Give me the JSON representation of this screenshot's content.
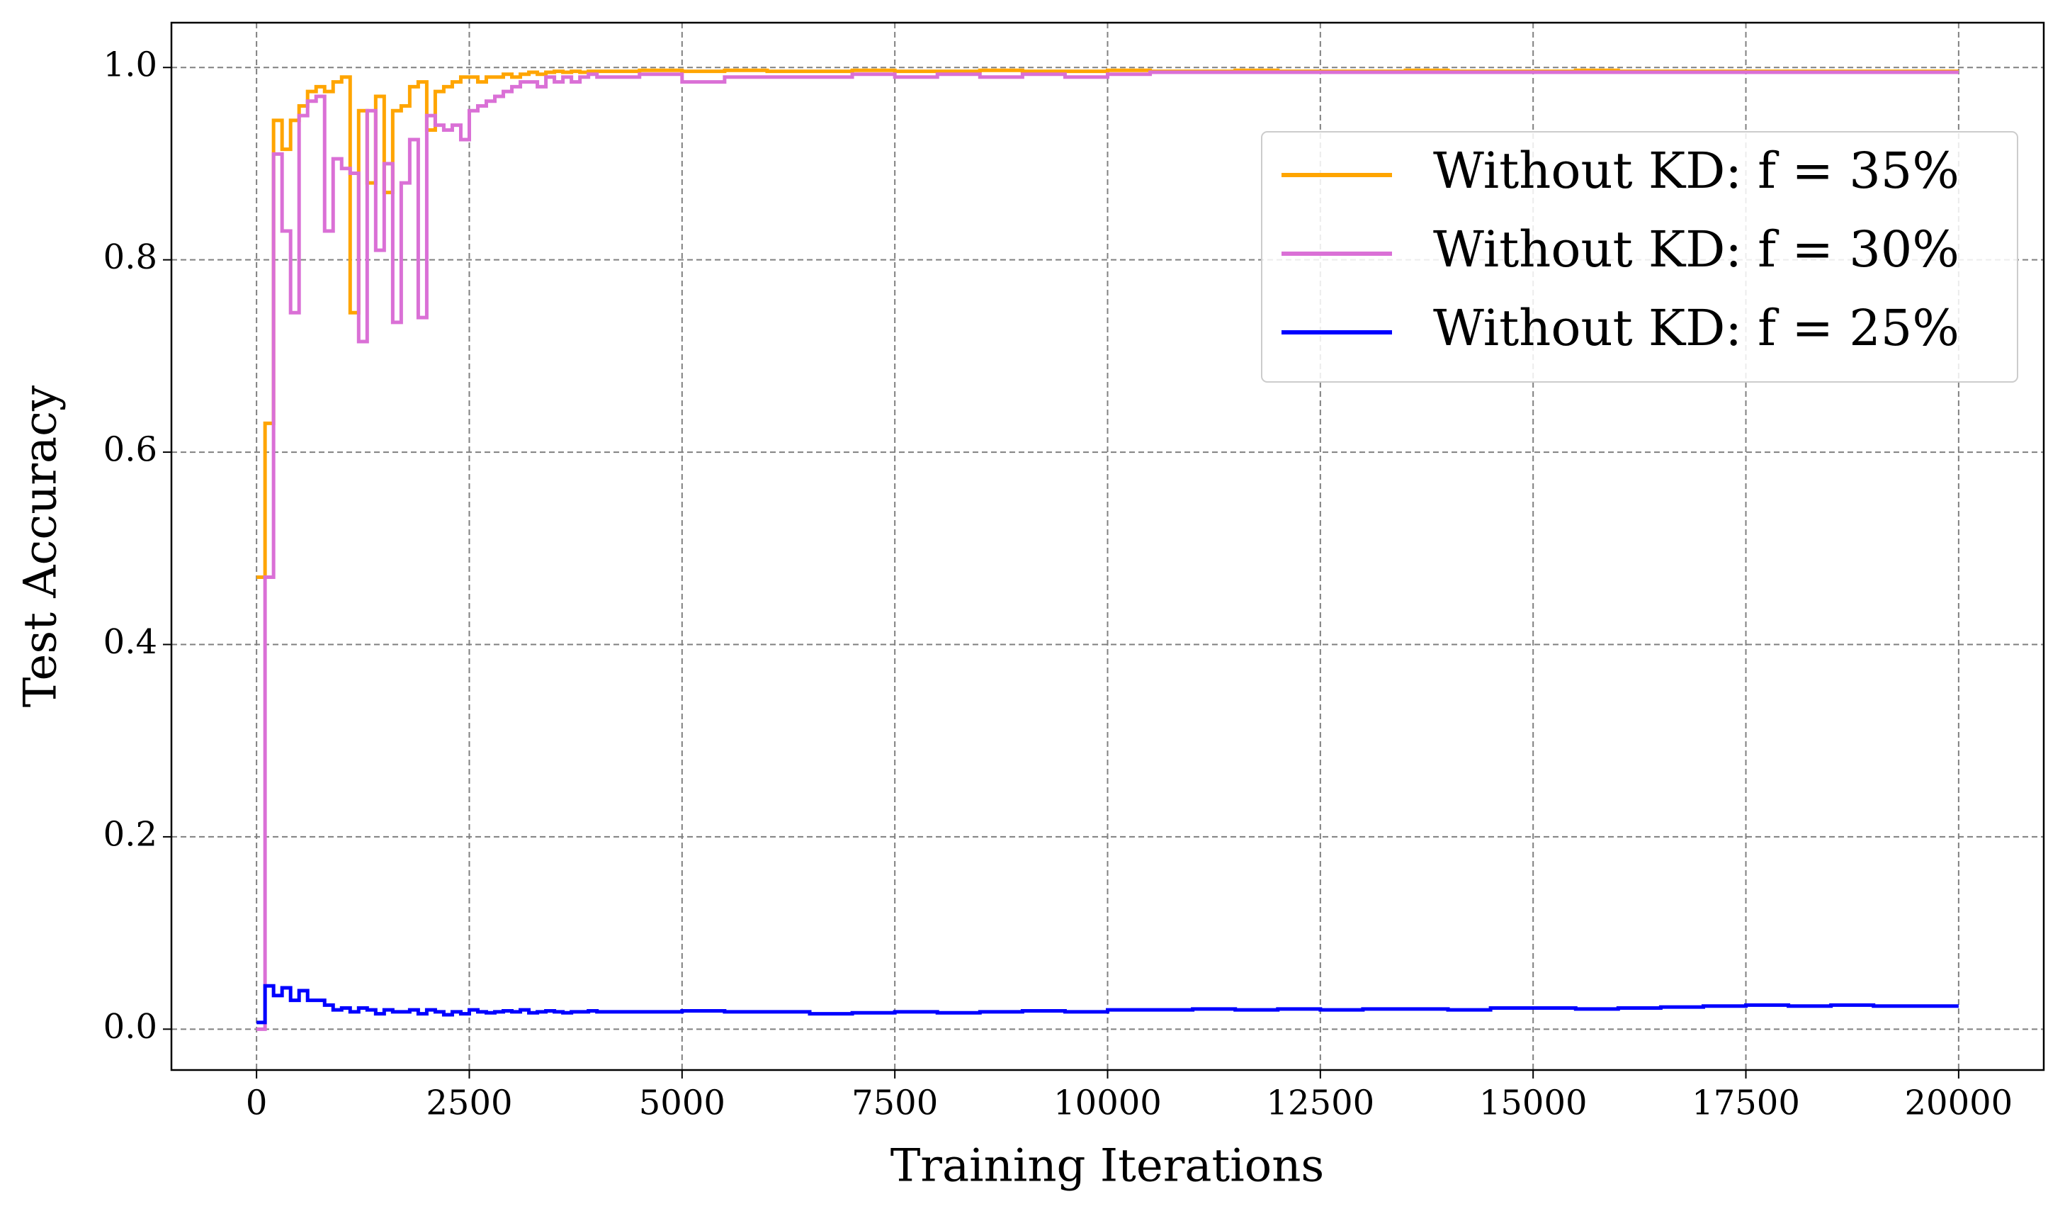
{
  "chart_data": {
    "type": "step-line",
    "xlabel": "Training Iterations",
    "ylabel": "Test Accuracy",
    "x": [
      0,
      100,
      200,
      300,
      400,
      500,
      600,
      700,
      800,
      900,
      1000,
      1100,
      1200,
      1300,
      1400,
      1500,
      1600,
      1700,
      1800,
      1900,
      2000,
      2100,
      2200,
      2300,
      2400,
      2500,
      2600,
      2700,
      2800,
      2900,
      3000,
      3100,
      3200,
      3300,
      3400,
      3500,
      3600,
      3700,
      3800,
      3900,
      4000,
      4500,
      5000,
      5500,
      6000,
      6500,
      7000,
      7500,
      8000,
      8500,
      9000,
      9500,
      10000,
      10500,
      11000,
      11500,
      12000,
      12500,
      13000,
      13500,
      14000,
      14500,
      15000,
      15500,
      16000,
      16500,
      17000,
      17500,
      18000,
      18500,
      19000,
      19500,
      20000
    ],
    "series": [
      {
        "name": "Without KD: f = 35%",
        "color": "#ffa500",
        "values": [
          0.47,
          0.63,
          0.945,
          0.915,
          0.945,
          0.96,
          0.975,
          0.98,
          0.975,
          0.985,
          0.99,
          0.745,
          0.955,
          0.88,
          0.97,
          0.87,
          0.955,
          0.96,
          0.98,
          0.985,
          0.935,
          0.975,
          0.98,
          0.985,
          0.99,
          0.99,
          0.985,
          0.99,
          0.99,
          0.993,
          0.99,
          0.993,
          0.995,
          0.993,
          0.995,
          0.996,
          0.995,
          0.996,
          0.995,
          0.996,
          0.996,
          0.997,
          0.996,
          0.997,
          0.996,
          0.996,
          0.997,
          0.996,
          0.996,
          0.997,
          0.996,
          0.996,
          0.997,
          0.996,
          0.996,
          0.997,
          0.996,
          0.996,
          0.996,
          0.997,
          0.996,
          0.996,
          0.996,
          0.997,
          0.996,
          0.996,
          0.996,
          0.996,
          0.996,
          0.996,
          0.996,
          0.996,
          0.996
        ]
      },
      {
        "name": "Without KD: f = 30%",
        "color": "#da70d6",
        "values": [
          0.0,
          0.47,
          0.91,
          0.83,
          0.745,
          0.95,
          0.965,
          0.97,
          0.83,
          0.905,
          0.895,
          0.89,
          0.715,
          0.955,
          0.81,
          0.9,
          0.735,
          0.88,
          0.925,
          0.74,
          0.95,
          0.94,
          0.935,
          0.94,
          0.925,
          0.955,
          0.96,
          0.965,
          0.97,
          0.975,
          0.98,
          0.985,
          0.985,
          0.98,
          0.99,
          0.985,
          0.99,
          0.985,
          0.99,
          0.993,
          0.99,
          0.993,
          0.985,
          0.99,
          0.99,
          0.99,
          0.993,
          0.99,
          0.993,
          0.99,
          0.993,
          0.99,
          0.993,
          0.995,
          0.995,
          0.995,
          0.995,
          0.995,
          0.995,
          0.995,
          0.995,
          0.995,
          0.995,
          0.995,
          0.995,
          0.995,
          0.995,
          0.995,
          0.995,
          0.995,
          0.995,
          0.995,
          0.995
        ]
      },
      {
        "name": "Without KD: f = 25%",
        "color": "#0000ff",
        "values": [
          0.007,
          0.045,
          0.035,
          0.043,
          0.03,
          0.04,
          0.03,
          0.03,
          0.025,
          0.02,
          0.022,
          0.018,
          0.022,
          0.02,
          0.016,
          0.02,
          0.018,
          0.018,
          0.02,
          0.016,
          0.02,
          0.018,
          0.015,
          0.018,
          0.016,
          0.02,
          0.018,
          0.017,
          0.018,
          0.019,
          0.018,
          0.02,
          0.017,
          0.018,
          0.019,
          0.018,
          0.017,
          0.018,
          0.018,
          0.019,
          0.018,
          0.018,
          0.019,
          0.018,
          0.018,
          0.016,
          0.017,
          0.018,
          0.017,
          0.018,
          0.019,
          0.018,
          0.02,
          0.02,
          0.021,
          0.02,
          0.021,
          0.02,
          0.021,
          0.021,
          0.02,
          0.022,
          0.022,
          0.021,
          0.022,
          0.023,
          0.024,
          0.025,
          0.024,
          0.025,
          0.024,
          0.024,
          0.024
        ]
      }
    ],
    "xlim": [
      -1000,
      21000
    ],
    "xticks": [
      0,
      2500,
      5000,
      7500,
      10000,
      12500,
      15000,
      17500,
      20000
    ],
    "ylim": [
      -0.0425,
      1.0466
    ],
    "yticks": [
      {
        "value": 0,
        "label": "0.0"
      },
      0.2,
      0.4,
      0.6,
      0.8,
      {
        "value": 1,
        "label": "1.0"
      }
    ],
    "grid": true,
    "legend": "upper right"
  }
}
